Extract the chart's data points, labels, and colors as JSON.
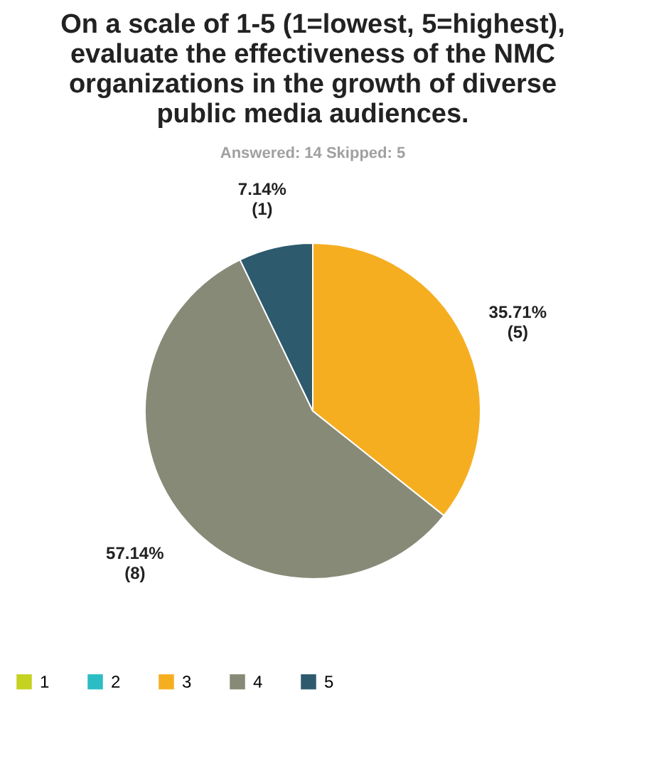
{
  "chart_data": {
    "type": "pie",
    "title": "On a scale of 1-5 (1=lowest, 5=highest), evaluate the effectiveness of the NMC organizations in the growth of diverse public media audiences.",
    "subtitle": "Answered: 14    Skipped: 5",
    "categories": [
      "1",
      "2",
      "3",
      "4",
      "5"
    ],
    "values": [
      0,
      0,
      35.71,
      57.14,
      7.14
    ],
    "colors": [
      "#c5d21f",
      "#2bbcc4",
      "#f6ae21",
      "#878a76",
      "#2d5a6d"
    ],
    "value_labels": [
      null,
      null,
      "35.71%\n(5)",
      "57.14%\n(8)",
      "7.14%\n(1)"
    ],
    "legend": "bottom"
  }
}
